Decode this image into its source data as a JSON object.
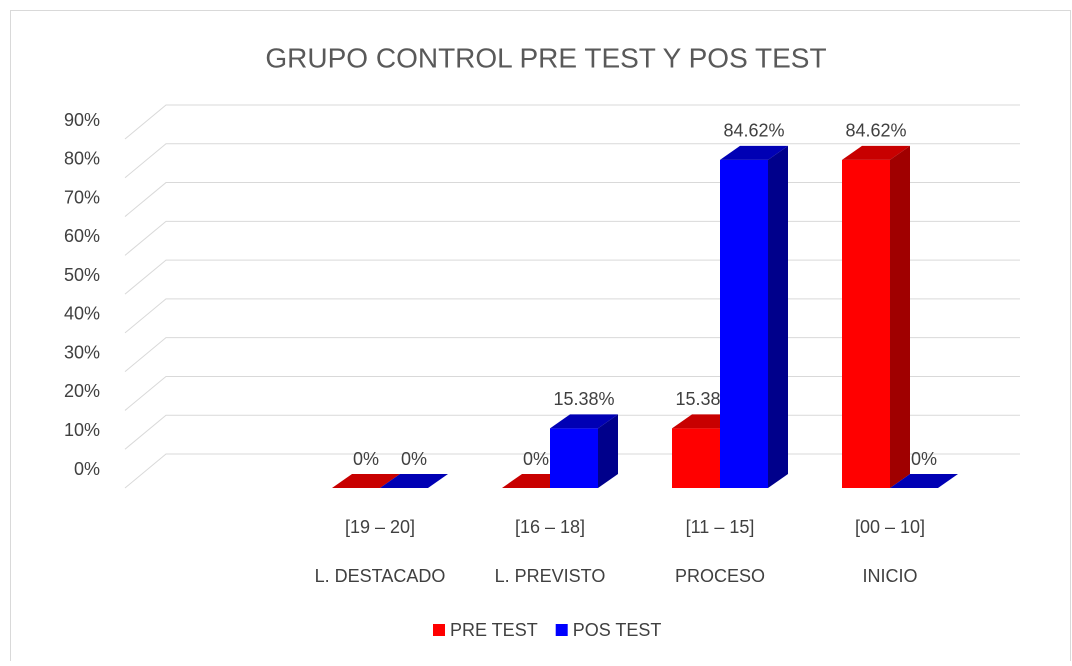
{
  "chart_data": {
    "type": "bar3d",
    "title": "GRUPO CONTROL PRE TEST Y POS TEST",
    "categories": [
      null,
      "[19 – 20]",
      "[16 – 18]",
      "[11 – 15]",
      "[00 – 10]"
    ],
    "category_names": [
      null,
      "L. DESTACADO",
      "L. PREVISTO",
      "PROCESO",
      "INICIO"
    ],
    "series": [
      {
        "name": "PRE TEST",
        "color": "#ff0000",
        "side_color": "#a00000",
        "top_color": "#c80000",
        "values": [
          null,
          0,
          0,
          15.38,
          84.62
        ],
        "value_labels": [
          null,
          "0%",
          "0%",
          "15.38%",
          "84.62%"
        ]
      },
      {
        "name": "POS TEST",
        "color": "#0000ff",
        "side_color": "#00008b",
        "top_color": "#0000b4",
        "values": [
          null,
          0,
          15.38,
          84.62,
          0
        ],
        "value_labels": [
          null,
          "0%",
          "15.38%",
          "84.62%",
          "0%"
        ]
      }
    ],
    "ylim": [
      0,
      90
    ],
    "yticks": [
      {
        "value": 0,
        "label": "0%"
      },
      {
        "value": 10,
        "label": "10%"
      },
      {
        "value": 20,
        "label": "20%"
      },
      {
        "value": 30,
        "label": "30%"
      },
      {
        "value": 40,
        "label": "40%"
      },
      {
        "value": 50,
        "label": "50%"
      },
      {
        "value": 60,
        "label": "60%"
      },
      {
        "value": 70,
        "label": "70%"
      },
      {
        "value": 80,
        "label": "80%"
      },
      {
        "value": 90,
        "label": "90%"
      }
    ],
    "grid": true,
    "legend": "bottom"
  }
}
